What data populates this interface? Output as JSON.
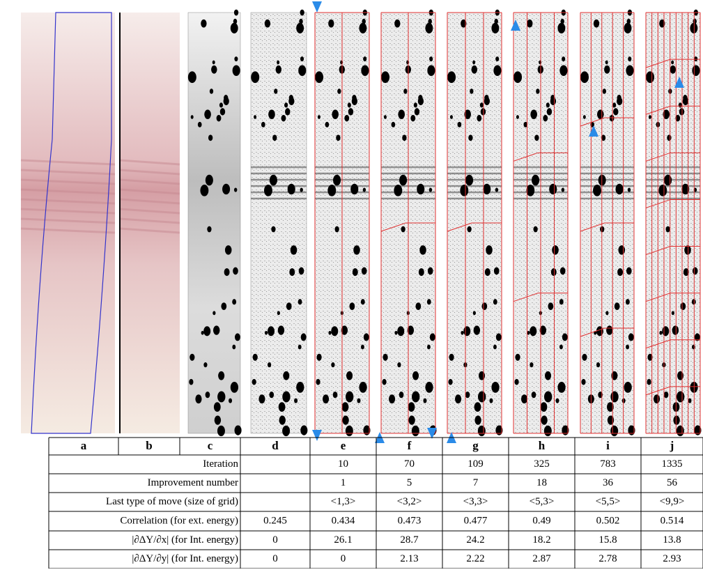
{
  "panel_labels": [
    "a",
    "b",
    "c",
    "d",
    "e",
    "f",
    "g",
    "h",
    "i",
    "j"
  ],
  "table": {
    "rows": [
      {
        "label": "Iteration",
        "cells": [
          null,
          "10",
          "70",
          "109",
          "325",
          "783",
          "1335"
        ]
      },
      {
        "label": "Improvement number",
        "cells": [
          null,
          "1",
          "5",
          "7",
          "18",
          "36",
          "56"
        ]
      },
      {
        "label": "Last type of move (size of grid)",
        "cells": [
          null,
          "<1,3>",
          "<3,2>",
          "<3,3>",
          "<5,3>",
          "<5,5>",
          "<9,9>"
        ]
      },
      {
        "label": "Correlation (for ext. energy)",
        "cells": [
          "0.245",
          "0.434",
          "0.473",
          "0.477",
          "0.49",
          "0.502",
          "0.514"
        ]
      },
      {
        "label": "|∂ΔY/∂x| (for Int. energy)",
        "cells": [
          "0",
          "26.1",
          "28.7",
          "24.2",
          "18.2",
          "15.8",
          "13.8"
        ]
      },
      {
        "label": "|∂ΔY/∂y| (for Int. energy)",
        "cells": [
          "0",
          "0",
          "2.13",
          "2.22",
          "2.87",
          "2.78",
          "2.93"
        ]
      }
    ]
  }
}
